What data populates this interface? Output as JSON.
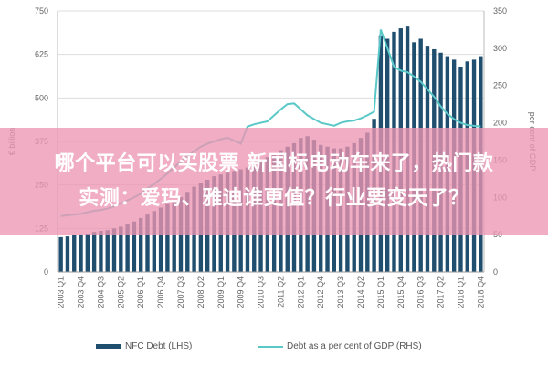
{
  "chart_data": {
    "type": "bar+line",
    "title": "",
    "ylabel_left": "€ billion",
    "ylabel_right": "per cent of GDP",
    "ylim_left": [
      0,
      750
    ],
    "ylim_right": [
      0,
      350
    ],
    "yticks_left": [
      "0",
      "125",
      "250",
      "375",
      "500",
      "625",
      "750"
    ],
    "yticks_right": [
      "0",
      "50",
      "100",
      "150",
      "200",
      "250",
      "300",
      "350"
    ],
    "grid": true,
    "legend_position": "bottom",
    "categories": [
      "2003 Q1",
      "2003 Q2",
      "2003 Q3",
      "2003 Q4",
      "2004 Q1",
      "2004 Q2",
      "2004 Q3",
      "2004 Q4",
      "2005 Q1",
      "2005 Q2",
      "2005 Q3",
      "2005 Q4",
      "2006 Q1",
      "2006 Q2",
      "2006 Q3",
      "2006 Q4",
      "2007 Q1",
      "2007 Q2",
      "2007 Q3",
      "2007 Q4",
      "2008 Q1",
      "2008 Q2",
      "2008 Q3",
      "2008 Q4",
      "2009 Q1",
      "2009 Q2",
      "2009 Q3",
      "2009 Q4",
      "2010 Q1",
      "2010 Q2",
      "2010 Q3",
      "2010 Q4",
      "2011 Q1",
      "2011 Q2",
      "2011 Q3",
      "2011 Q4",
      "2012 Q1",
      "2012 Q2",
      "2012 Q3",
      "2012 Q4",
      "2013 Q1",
      "2013 Q2",
      "2013 Q3",
      "2013 Q4",
      "2014 Q1",
      "2014 Q2",
      "2014 Q3",
      "2014 Q4",
      "2015 Q1",
      "2015 Q2",
      "2015 Q3",
      "2015 Q4",
      "2016 Q1",
      "2016 Q2",
      "2016 Q3",
      "2016 Q4",
      "2017 Q1",
      "2017 Q2",
      "2017 Q3",
      "2017 Q4",
      "2018 Q1",
      "2018 Q2",
      "2018 Q3",
      "2018 Q4"
    ],
    "series": [
      {
        "name": "NFC Debt (LHS)",
        "type": "bar",
        "axis": "left",
        "color": "#1f4e6e",
        "values": [
          100,
          102,
          105,
          108,
          110,
          115,
          118,
          120,
          125,
          130,
          138,
          145,
          155,
          165,
          175,
          185,
          195,
          205,
          215,
          230,
          245,
          255,
          265,
          275,
          280,
          285,
          290,
          295,
          300,
          310,
          320,
          330,
          340,
          350,
          360,
          370,
          385,
          390,
          380,
          365,
          360,
          355,
          355,
          360,
          370,
          385,
          400,
          440,
          680,
          670,
          690,
          700,
          705,
          660,
          670,
          650,
          640,
          630,
          620,
          610,
          590,
          605,
          610,
          620
        ]
      },
      {
        "name": "Debt as a per cent of GDP (RHS)",
        "type": "line",
        "axis": "right",
        "color": "#5bc8c8",
        "values": [
          75,
          76,
          77,
          78,
          80,
          82,
          83,
          85,
          88,
          92,
          96,
          100,
          105,
          112,
          118,
          125,
          132,
          140,
          148,
          155,
          162,
          168,
          172,
          175,
          178,
          180,
          176,
          172,
          195,
          198,
          200,
          202,
          210,
          218,
          225,
          226,
          218,
          210,
          205,
          200,
          198,
          196,
          200,
          202,
          203,
          206,
          210,
          215,
          325,
          300,
          275,
          270,
          268,
          262,
          255,
          245,
          235,
          222,
          212,
          205,
          200,
          197,
          196,
          195
        ]
      }
    ]
  },
  "banner": {
    "line1": "哪个平台可以买股票 新国标电动车来了，热门款",
    "line2": "实测：爱玛、雅迪谁更值？行业要变天了？"
  }
}
